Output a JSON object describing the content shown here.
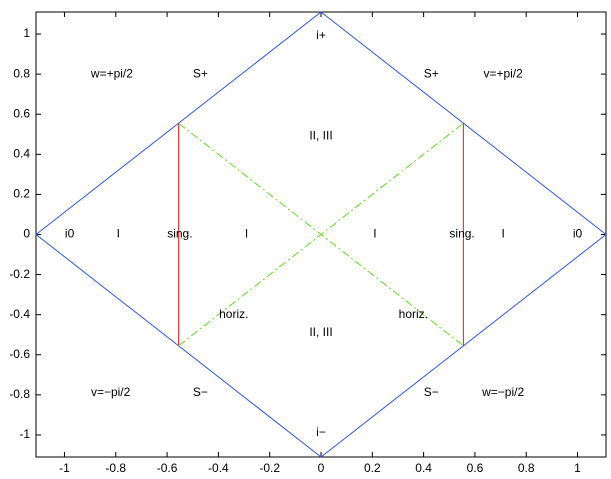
{
  "chart_data": {
    "type": "line",
    "xlim": [
      -1.111,
      1.111
    ],
    "ylim": [
      -1.11,
      1.11
    ],
    "xticks": [
      -1,
      -0.8,
      -0.6,
      -0.4,
      -0.2,
      0,
      0.2,
      0.4,
      0.6,
      0.8,
      1
    ],
    "yticks": [
      -1,
      -0.8,
      -0.6,
      -0.4,
      -0.2,
      0,
      0.2,
      0.4,
      0.6,
      0.8,
      1
    ],
    "series": [
      {
        "color": "#3355ee",
        "dash": "solid",
        "x": [
          -1.111,
          0,
          1.111,
          0,
          -1.111
        ],
        "y": [
          0,
          1.11,
          0,
          -1.11,
          0
        ]
      },
      {
        "color": "#e02020",
        "dash": "solid",
        "x": [
          -0.555,
          -0.555
        ],
        "y": [
          -0.555,
          0.555
        ]
      },
      {
        "color": "#e02020",
        "dash": "solid",
        "x": [
          0.555,
          0.555
        ],
        "y": [
          -0.555,
          0.555
        ]
      },
      {
        "color": "#66dd22",
        "dash": "dashdot",
        "x": [
          -0.555,
          0.555
        ],
        "y": [
          0.555,
          -0.555
        ]
      },
      {
        "color": "#66dd22",
        "dash": "dashdot",
        "x": [
          -0.555,
          0.555
        ],
        "y": [
          -0.555,
          0.555
        ]
      }
    ],
    "annotations": [
      {
        "text": "i+",
        "x": 0,
        "y": 0.99
      },
      {
        "text": "w=+pi/2",
        "x": -0.815,
        "y": 0.8
      },
      {
        "text": "S+",
        "x": -0.47,
        "y": 0.8
      },
      {
        "text": "S+",
        "x": 0.43,
        "y": 0.8
      },
      {
        "text": "v=+pi/2",
        "x": 0.71,
        "y": 0.8
      },
      {
        "text": "II, III",
        "x": 0,
        "y": 0.49
      },
      {
        "text": "i0",
        "x": -0.98,
        "y": 0
      },
      {
        "text": "I",
        "x": -0.79,
        "y": 0
      },
      {
        "text": "sing.",
        "x": -0.55,
        "y": 0
      },
      {
        "text": "I",
        "x": -0.29,
        "y": 0
      },
      {
        "text": "I",
        "x": 0.21,
        "y": 0
      },
      {
        "text": "sing.",
        "x": 0.55,
        "y": 0
      },
      {
        "text": "I",
        "x": 0.71,
        "y": 0
      },
      {
        "text": "i0",
        "x": 1.0,
        "y": 0
      },
      {
        "text": "horiz.",
        "x": -0.34,
        "y": -0.4
      },
      {
        "text": "horiz.",
        "x": 0.36,
        "y": -0.4
      },
      {
        "text": "II, III",
        "x": 0,
        "y": -0.49
      },
      {
        "text": "v=−pi/2",
        "x": -0.82,
        "y": -0.79
      },
      {
        "text": "S−",
        "x": -0.47,
        "y": -0.79
      },
      {
        "text": "S−",
        "x": 0.43,
        "y": -0.79
      },
      {
        "text": "w=−pi/2",
        "x": 0.71,
        "y": -0.79
      },
      {
        "text": "i−",
        "x": 0,
        "y": -0.99
      }
    ]
  }
}
